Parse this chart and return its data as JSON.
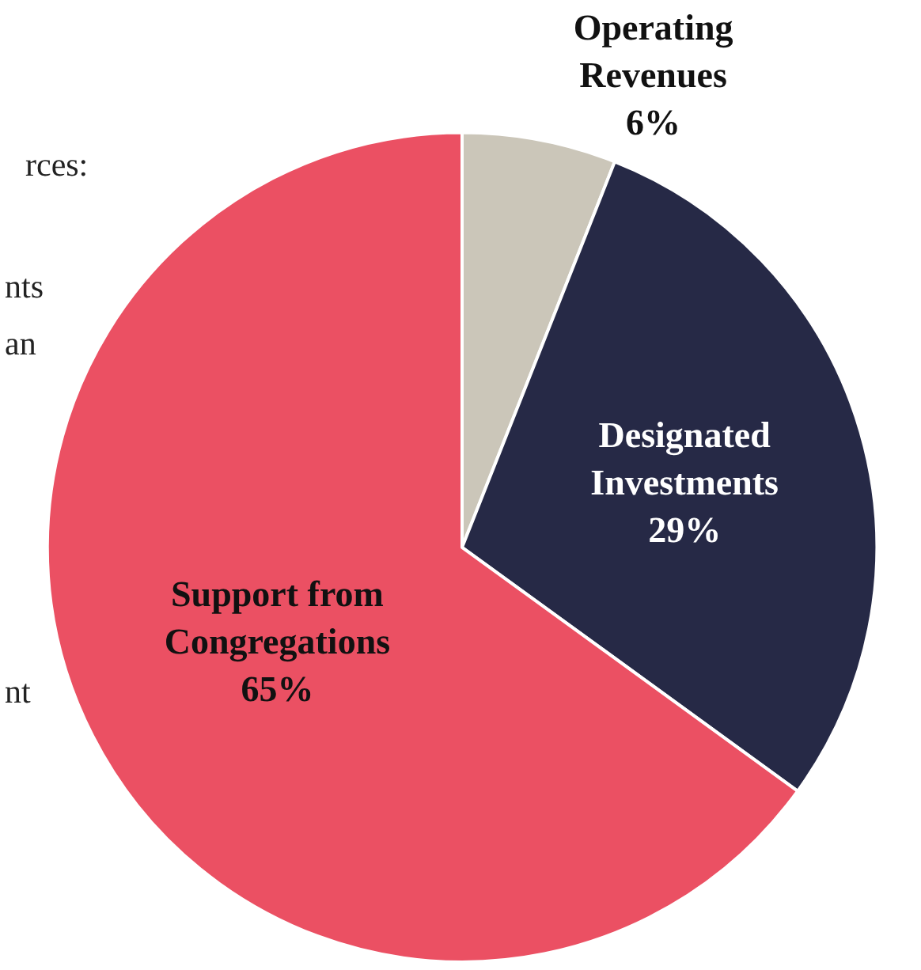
{
  "chart_data": {
    "type": "pie",
    "categories": [
      "Operating Revenues",
      "Designated Investments",
      "Support from Congregations"
    ],
    "values": [
      6,
      29,
      65
    ],
    "colors": [
      "#cbc6b9",
      "#262946",
      "#eb5063"
    ],
    "value_labels": [
      "6%",
      "29%",
      "65%"
    ],
    "legend": false,
    "annotations": [
      "rces:",
      "nts",
      "an",
      "nt"
    ]
  }
}
